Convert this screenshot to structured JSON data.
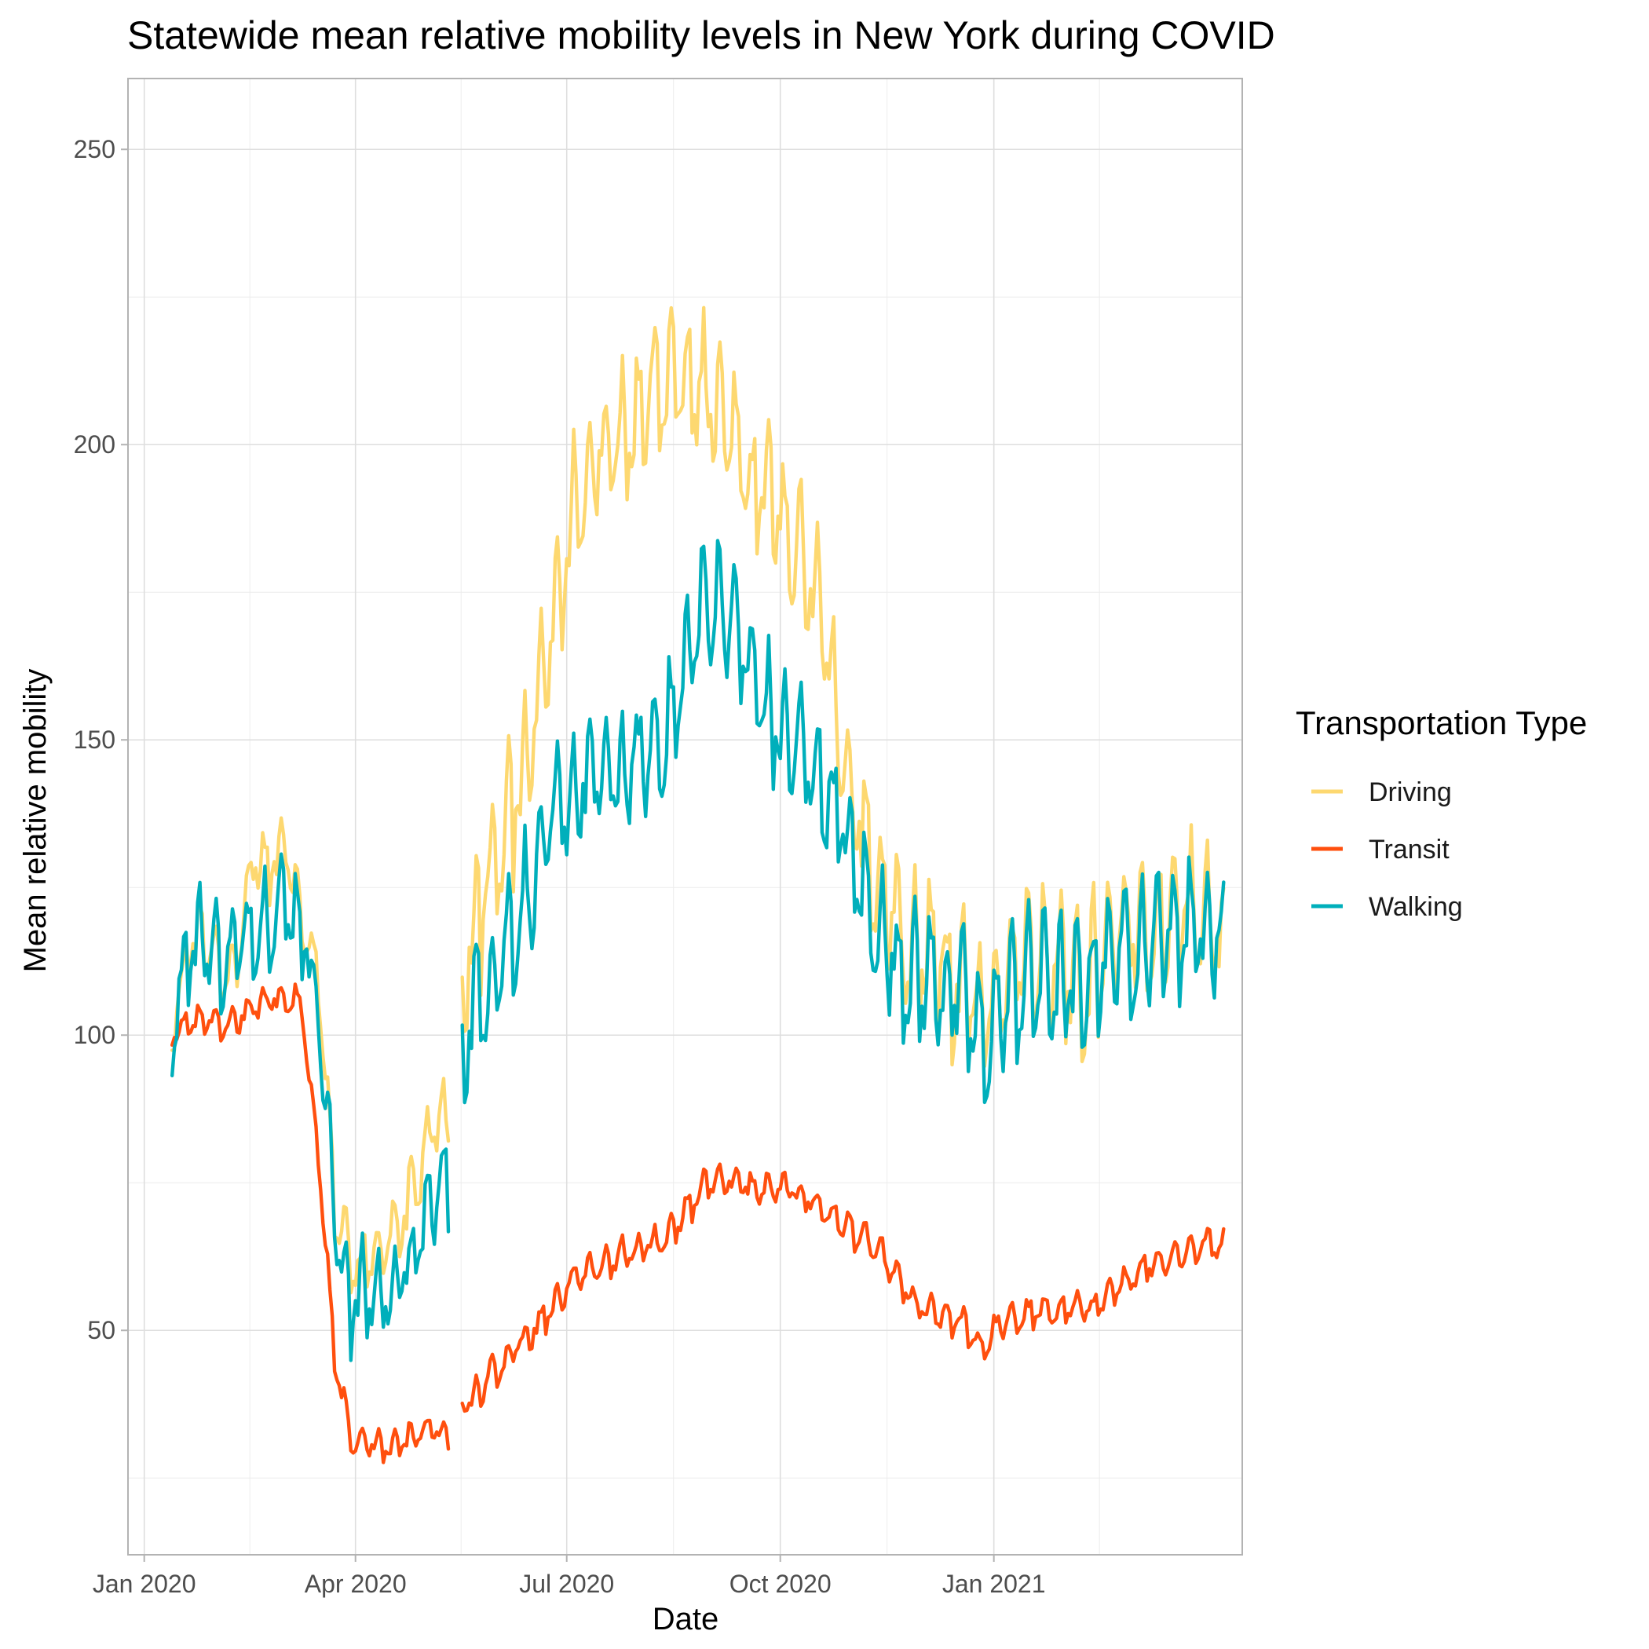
{
  "chart_data": {
    "type": "line",
    "title": "Statewide mean relative mobility levels in New York during COVID",
    "xlabel": "Date",
    "ylabel": "Mean relative mobility",
    "x_ticks": [
      "Jan 2020",
      "Apr 2020",
      "Jul 2020",
      "Oct 2020",
      "Jan 2021"
    ],
    "y_ticks": [
      50,
      100,
      150,
      200,
      250
    ],
    "xlim": [
      "2019-12-25",
      "2021-04-18"
    ],
    "ylim": [
      12,
      262
    ],
    "grid": true,
    "legend": {
      "title": "Transportation Type",
      "position": "right"
    },
    "series": [
      {
        "name": "Driving",
        "color": "#FDD870",
        "segments": [
          {
            "start": "2020-01-13",
            "end": "2020-05-11",
            "points": [
              [
                "2020-01-13",
                100
              ],
              [
                "2020-01-20",
                112
              ],
              [
                "2020-01-27",
                116
              ],
              [
                "2020-02-03",
                108
              ],
              [
                "2020-02-10",
                112
              ],
              [
                "2020-02-17",
                128
              ],
              [
                "2020-02-24",
                126
              ],
              [
                "2020-03-02",
                130
              ],
              [
                "2020-03-09",
                116
              ],
              [
                "2020-03-16",
                106
              ],
              [
                "2020-03-23",
                70
              ],
              [
                "2020-03-30",
                58
              ],
              [
                "2020-04-06",
                60
              ],
              [
                "2020-04-13",
                62
              ],
              [
                "2020-04-20",
                66
              ],
              [
                "2020-04-27",
                72
              ],
              [
                "2020-05-04",
                82
              ],
              [
                "2020-05-11",
                84
              ]
            ],
            "amplitude": 11
          },
          {
            "start": "2020-05-17",
            "end": "2021-04-10",
            "points": [
              [
                "2020-05-17",
                106
              ],
              [
                "2020-05-24",
                116
              ],
              [
                "2020-05-31",
                124
              ],
              [
                "2020-06-07",
                134
              ],
              [
                "2020-06-14",
                142
              ],
              [
                "2020-06-21",
                156
              ],
              [
                "2020-06-28",
                172
              ],
              [
                "2020-07-05",
                186
              ],
              [
                "2020-07-12",
                194
              ],
              [
                "2020-07-19",
                196
              ],
              [
                "2020-07-26",
                198
              ],
              [
                "2020-08-02",
                202
              ],
              [
                "2020-08-09",
                206
              ],
              [
                "2020-08-16",
                208
              ],
              [
                "2020-08-23",
                206
              ],
              [
                "2020-08-30",
                204
              ],
              [
                "2020-09-06",
                200
              ],
              [
                "2020-09-13",
                194
              ],
              [
                "2020-09-20",
                188
              ],
              [
                "2020-09-27",
                186
              ],
              [
                "2020-10-04",
                182
              ],
              [
                "2020-10-11",
                176
              ],
              [
                "2020-10-18",
                168
              ],
              [
                "2020-10-25",
                150
              ],
              [
                "2020-11-01",
                136
              ],
              [
                "2020-11-08",
                126
              ],
              [
                "2020-11-15",
                118
              ],
              [
                "2020-11-22",
                114
              ],
              [
                "2020-11-29",
                110
              ],
              [
                "2020-12-06",
                110
              ],
              [
                "2020-12-13",
                106
              ],
              [
                "2020-12-20",
                104
              ],
              [
                "2020-12-27",
                98
              ],
              [
                "2021-01-03",
                104
              ],
              [
                "2021-01-10",
                108
              ],
              [
                "2021-01-17",
                110
              ],
              [
                "2021-01-24",
                110
              ],
              [
                "2021-01-31",
                106
              ],
              [
                "2021-02-07",
                104
              ],
              [
                "2021-02-14",
                108
              ],
              [
                "2021-02-21",
                112
              ],
              [
                "2021-02-28",
                114
              ],
              [
                "2021-03-07",
                114
              ],
              [
                "2021-03-14",
                116
              ],
              [
                "2021-03-21",
                116
              ],
              [
                "2021-03-28",
                118
              ],
              [
                "2021-04-04",
                116
              ],
              [
                "2021-04-10",
                114
              ]
            ],
            "amplitude": 22
          }
        ]
      },
      {
        "name": "Transit",
        "color": "#FF4F0E",
        "segments": [
          {
            "start": "2020-01-13",
            "end": "2020-05-11",
            "points": [
              [
                "2020-01-13",
                100
              ],
              [
                "2020-01-20",
                101
              ],
              [
                "2020-01-27",
                102
              ],
              [
                "2020-02-03",
                101
              ],
              [
                "2020-02-10",
                102
              ],
              [
                "2020-02-17",
                104
              ],
              [
                "2020-02-24",
                105
              ],
              [
                "2020-03-02",
                106
              ],
              [
                "2020-03-09",
                104
              ],
              [
                "2020-03-16",
                78
              ],
              [
                "2020-03-23",
                45
              ],
              [
                "2020-03-30",
                31
              ],
              [
                "2020-04-06",
                30
              ],
              [
                "2020-04-13",
                29
              ],
              [
                "2020-04-20",
                30
              ],
              [
                "2020-04-27",
                31
              ],
              [
                "2020-05-04",
                33
              ],
              [
                "2020-05-11",
                31
              ]
            ],
            "amplitude": 5
          },
          {
            "start": "2020-05-17",
            "end": "2021-04-10",
            "points": [
              [
                "2020-05-17",
                36
              ],
              [
                "2020-05-24",
                39
              ],
              [
                "2020-05-31",
                42
              ],
              [
                "2020-06-07",
                45
              ],
              [
                "2020-06-14",
                48
              ],
              [
                "2020-06-21",
                51
              ],
              [
                "2020-06-28",
                55
              ],
              [
                "2020-07-05",
                58
              ],
              [
                "2020-07-12",
                60
              ],
              [
                "2020-07-19",
                61
              ],
              [
                "2020-07-26",
                62
              ],
              [
                "2020-08-02",
                63
              ],
              [
                "2020-08-09",
                64
              ],
              [
                "2020-08-16",
                66
              ],
              [
                "2020-08-23",
                70
              ],
              [
                "2020-08-30",
                74
              ],
              [
                "2020-09-06",
                75
              ],
              [
                "2020-09-13",
                74
              ],
              [
                "2020-09-20",
                73
              ],
              [
                "2020-09-27",
                73
              ],
              [
                "2020-10-04",
                73
              ],
              [
                "2020-10-11",
                72
              ],
              [
                "2020-10-18",
                70
              ],
              [
                "2020-10-25",
                68
              ],
              [
                "2020-11-01",
                66
              ],
              [
                "2020-11-08",
                64
              ],
              [
                "2020-11-15",
                61
              ],
              [
                "2020-11-22",
                57
              ],
              [
                "2020-11-29",
                53
              ],
              [
                "2020-12-06",
                52
              ],
              [
                "2020-12-13",
                51
              ],
              [
                "2020-12-20",
                50
              ],
              [
                "2020-12-27",
                46
              ],
              [
                "2021-01-03",
                50
              ],
              [
                "2021-01-10",
                51
              ],
              [
                "2021-01-17",
                52
              ],
              [
                "2021-01-24",
                52
              ],
              [
                "2021-01-31",
                53
              ],
              [
                "2021-02-07",
                53
              ],
              [
                "2021-02-14",
                53
              ],
              [
                "2021-02-21",
                55
              ],
              [
                "2021-02-28",
                58
              ],
              [
                "2021-03-07",
                60
              ],
              [
                "2021-03-14",
                61
              ],
              [
                "2021-03-21",
                62
              ],
              [
                "2021-03-28",
                63
              ],
              [
                "2021-04-04",
                64
              ],
              [
                "2021-04-10",
                63
              ]
            ],
            "amplitude": 5
          }
        ]
      },
      {
        "name": "Walking",
        "color": "#00AFBB",
        "segments": [
          {
            "start": "2020-01-13",
            "end": "2020-05-11",
            "points": [
              [
                "2020-01-13",
                100
              ],
              [
                "2020-01-20",
                112
              ],
              [
                "2020-01-27",
                114
              ],
              [
                "2020-02-03",
                110
              ],
              [
                "2020-02-10",
                112
              ],
              [
                "2020-02-17",
                116
              ],
              [
                "2020-02-24",
                118
              ],
              [
                "2020-03-02",
                120
              ],
              [
                "2020-03-09",
                116
              ],
              [
                "2020-03-16",
                102
              ],
              [
                "2020-03-23",
                66
              ],
              [
                "2020-03-30",
                52
              ],
              [
                "2020-04-06",
                54
              ],
              [
                "2020-04-13",
                53
              ],
              [
                "2020-04-20",
                56
              ],
              [
                "2020-04-27",
                60
              ],
              [
                "2020-05-04",
                70
              ],
              [
                "2020-05-11",
                72
              ]
            ],
            "amplitude": 15
          },
          {
            "start": "2020-05-17",
            "end": "2021-04-10",
            "points": [
              [
                "2020-05-17",
                96
              ],
              [
                "2020-05-24",
                102
              ],
              [
                "2020-05-31",
                108
              ],
              [
                "2020-06-07",
                114
              ],
              [
                "2020-06-14",
                120
              ],
              [
                "2020-06-21",
                128
              ],
              [
                "2020-06-28",
                134
              ],
              [
                "2020-07-05",
                138
              ],
              [
                "2020-07-12",
                140
              ],
              [
                "2020-07-19",
                140
              ],
              [
                "2020-07-26",
                141
              ],
              [
                "2020-08-02",
                143
              ],
              [
                "2020-08-09",
                146
              ],
              [
                "2020-08-16",
                150
              ],
              [
                "2020-08-23",
                162
              ],
              [
                "2020-08-30",
                170
              ],
              [
                "2020-09-06",
                170
              ],
              [
                "2020-09-13",
                164
              ],
              [
                "2020-09-20",
                156
              ],
              [
                "2020-09-27",
                150
              ],
              [
                "2020-10-04",
                146
              ],
              [
                "2020-10-11",
                144
              ],
              [
                "2020-10-18",
                140
              ],
              [
                "2020-10-25",
                134
              ],
              [
                "2020-11-01",
                126
              ],
              [
                "2020-11-08",
                118
              ],
              [
                "2020-11-15",
                112
              ],
              [
                "2020-11-22",
                108
              ],
              [
                "2020-11-29",
                106
              ],
              [
                "2020-12-06",
                106
              ],
              [
                "2020-12-13",
                104
              ],
              [
                "2020-12-20",
                102
              ],
              [
                "2020-12-27",
                94
              ],
              [
                "2021-01-03",
                100
              ],
              [
                "2021-01-10",
                104
              ],
              [
                "2021-01-17",
                106
              ],
              [
                "2021-01-24",
                106
              ],
              [
                "2021-01-31",
                104
              ],
              [
                "2021-02-07",
                104
              ],
              [
                "2021-02-14",
                108
              ],
              [
                "2021-02-21",
                110
              ],
              [
                "2021-02-28",
                112
              ],
              [
                "2021-03-07",
                112
              ],
              [
                "2021-03-14",
                114
              ],
              [
                "2021-03-21",
                114
              ],
              [
                "2021-03-28",
                116
              ],
              [
                "2021-04-04",
                114
              ],
              [
                "2021-04-10",
                112
              ]
            ],
            "amplitude": 20
          }
        ]
      }
    ]
  }
}
